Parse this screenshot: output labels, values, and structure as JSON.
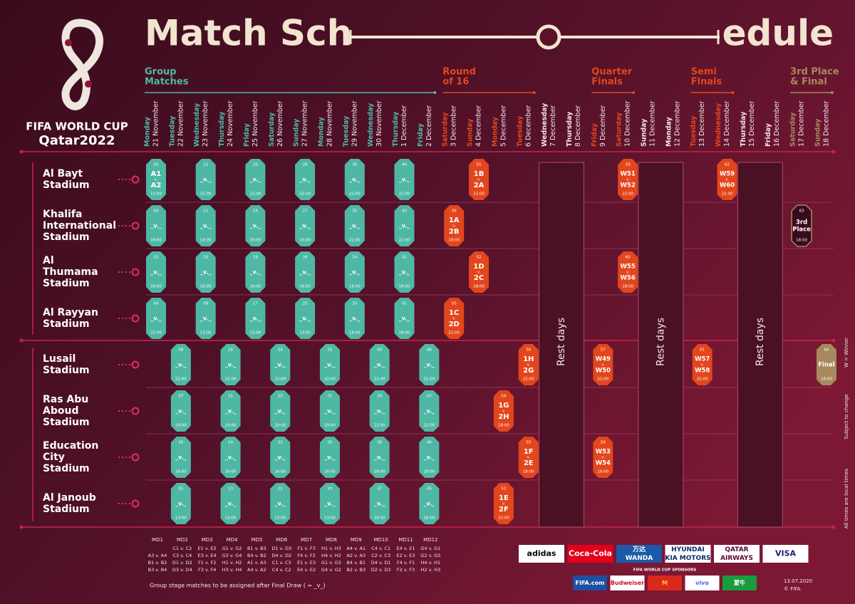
{
  "header": {
    "title_left": "Match Sch",
    "title_right": "edule",
    "logo_line1": "FIFA WORLD CUP",
    "logo_line2": "Qatar2022"
  },
  "stages": [
    {
      "lines": [
        "Group",
        "Matches"
      ],
      "from": "21 November",
      "to": "2 December",
      "color": "#4eb8a5"
    },
    {
      "lines": [
        "Round",
        "of 16"
      ],
      "from": "3 December",
      "to": "6 December",
      "color": "#e3461c"
    },
    {
      "lines": [
        "Quarter",
        "Finals"
      ],
      "from": "9 December",
      "to": "10 December",
      "color": "#e3461c"
    },
    {
      "lines": [
        "Semi",
        "Finals"
      ],
      "from": "13 December",
      "to": "14 December",
      "color": "#e3461c"
    },
    {
      "lines": [
        "3rd Place",
        "& Final"
      ],
      "from": "17 December",
      "to": "18 December",
      "color": "#a8895e"
    }
  ],
  "dates": [
    {
      "weekday": "Monday",
      "date": "21 November"
    },
    {
      "weekday": "Tuesday",
      "date": "22 November"
    },
    {
      "weekday": "Wednesday",
      "date": "23 November"
    },
    {
      "weekday": "Thursday",
      "date": "24 November"
    },
    {
      "weekday": "Friday",
      "date": "25 November"
    },
    {
      "weekday": "Saturday",
      "date": "26 November"
    },
    {
      "weekday": "Sunday",
      "date": "27 November"
    },
    {
      "weekday": "Monday",
      "date": "28 November"
    },
    {
      "weekday": "Tuesday",
      "date": "29 November"
    },
    {
      "weekday": "Wednesday",
      "date": "30 November"
    },
    {
      "weekday": "Thursday",
      "date": "1 December"
    },
    {
      "weekday": "Friday",
      "date": "2 December"
    },
    {
      "weekday": "Saturday",
      "date": "3 December"
    },
    {
      "weekday": "Sunday",
      "date": "4 December"
    },
    {
      "weekday": "Monday",
      "date": "5 December"
    },
    {
      "weekday": "Tuesday",
      "date": "6 December"
    },
    {
      "weekday": "Wednesday",
      "date": "7 December"
    },
    {
      "weekday": "Thursday",
      "date": "8 December"
    },
    {
      "weekday": "Friday",
      "date": "9 December"
    },
    {
      "weekday": "Saturday",
      "date": "10 December"
    },
    {
      "weekday": "Sunday",
      "date": "11 December"
    },
    {
      "weekday": "Monday",
      "date": "12 December"
    },
    {
      "weekday": "Tuesday",
      "date": "13 December"
    },
    {
      "weekday": "Wednesday",
      "date": "14 December"
    },
    {
      "weekday": "Thursday",
      "date": "15 December"
    },
    {
      "weekday": "Friday",
      "date": "16 December"
    },
    {
      "weekday": "Saturday",
      "date": "17 December"
    },
    {
      "weekday": "Sunday",
      "date": "18 December"
    }
  ],
  "rest_days": [
    {
      "label": "Rest days",
      "from": "7 December",
      "to": "8 December"
    },
    {
      "label": "Rest days",
      "from": "11 December",
      "to": "12 December"
    },
    {
      "label": "Rest days",
      "from": "15 December",
      "to": "16 December"
    }
  ],
  "versus": "v.",
  "stadiums": [
    {
      "lines": [
        "Al Bayt",
        "Stadium"
      ],
      "matches": [
        {
          "no": "01",
          "day": "21 November",
          "home": "A1",
          "away": "A2",
          "time": "13:00"
        },
        {
          "no": "12",
          "day": "23 November",
          "teams": "_v._",
          "time": "22:00"
        },
        {
          "no": "20",
          "day": "25 November",
          "teams": "_v._",
          "time": "22:00"
        },
        {
          "no": "28",
          "day": "27 November",
          "teams": "_v._",
          "time": "22:00"
        },
        {
          "no": "36",
          "day": "29 November",
          "teams": "_v._",
          "time": "22:00"
        },
        {
          "no": "44",
          "day": "1 December",
          "teams": "_v._",
          "time": "22:00"
        },
        {
          "no": "51",
          "day": "4 December",
          "home": "1B",
          "away": "2A",
          "time": "22:00"
        },
        {
          "no": "59",
          "day": "10 December",
          "home": "W51",
          "away": "W52",
          "time": "22:00"
        },
        {
          "no": "62",
          "day": "14 December",
          "home": "W59",
          "away": "W60",
          "time": "22:00"
        }
      ]
    },
    {
      "lines": [
        "Khalifa",
        "International",
        "Stadium"
      ],
      "matches": [
        {
          "no": "03",
          "day": "21 November",
          "teams": "_v._",
          "time": "19:00"
        },
        {
          "no": "11",
          "day": "23 November",
          "teams": "_v._",
          "time": "19:00"
        },
        {
          "no": "19",
          "day": "25 November",
          "teams": "_v._",
          "time": "19:00"
        },
        {
          "no": "27",
          "day": "27 November",
          "teams": "_v._",
          "time": "19:00"
        },
        {
          "no": "35",
          "day": "29 November",
          "teams": "_v._",
          "time": "22:00"
        },
        {
          "no": "43",
          "day": "1 December",
          "teams": "_v._",
          "time": "22:00"
        },
        {
          "no": "49",
          "day": "3 December",
          "home": "1A",
          "away": "2B",
          "time": "18:00"
        },
        {
          "no": "63",
          "day": "17 December",
          "name_lines": [
            "3rd",
            "Place"
          ],
          "time": "18:00",
          "outline": true
        }
      ]
    },
    {
      "lines": [
        "Al",
        "Thumama",
        "Stadium"
      ],
      "matches": [
        {
          "no": "02",
          "day": "21 November",
          "teams": "_v._",
          "time": "16:00"
        },
        {
          "no": "10",
          "day": "23 November",
          "teams": "_v._",
          "time": "16:00"
        },
        {
          "no": "18",
          "day": "25 November",
          "teams": "_v._",
          "time": "16:00"
        },
        {
          "no": "26",
          "day": "27 November",
          "teams": "_v._",
          "time": "16:00"
        },
        {
          "no": "34",
          "day": "29 November",
          "teams": "_v._",
          "time": "18:00"
        },
        {
          "no": "42",
          "day": "1 December",
          "teams": "_v._",
          "time": "18:00"
        },
        {
          "no": "52",
          "day": "4 December",
          "home": "1D",
          "away": "2C",
          "time": "18:00"
        },
        {
          "no": "60",
          "day": "10 December",
          "home": "W55",
          "away": "W56",
          "time": "18:00"
        }
      ]
    },
    {
      "lines": [
        "Al Rayyan",
        "Stadium"
      ],
      "matches": [
        {
          "no": "04",
          "day": "21 November",
          "teams": "_v._",
          "time": "22:00"
        },
        {
          "no": "09",
          "day": "23 November",
          "teams": "_v._",
          "time": "13:00"
        },
        {
          "no": "17",
          "day": "25 November",
          "teams": "_v._",
          "time": "13:00"
        },
        {
          "no": "25",
          "day": "27 November",
          "teams": "_v._",
          "time": "13:00"
        },
        {
          "no": "33",
          "day": "29 November",
          "teams": "_v._",
          "time": "18:00"
        },
        {
          "no": "41",
          "day": "1 December",
          "teams": "_v._",
          "time": "18:00"
        },
        {
          "no": "50",
          "day": "3 December",
          "home": "1C",
          "away": "2D",
          "time": "22:00"
        }
      ]
    },
    {
      "lines": [
        "Lusail",
        "Stadium"
      ],
      "matches": [
        {
          "no": "08",
          "day": "22 November",
          "teams": "_v._",
          "time": "22:00"
        },
        {
          "no": "16",
          "day": "24 November",
          "teams": "_v._",
          "time": "22:00"
        },
        {
          "no": "24",
          "day": "26 November",
          "teams": "_v._",
          "time": "22:00"
        },
        {
          "no": "32",
          "day": "28 November",
          "teams": "_v._",
          "time": "22:00"
        },
        {
          "no": "40",
          "day": "30 November",
          "teams": "_v._",
          "time": "22:00"
        },
        {
          "no": "48",
          "day": "2 December",
          "teams": "_v._",
          "time": "22:00"
        },
        {
          "no": "56",
          "day": "6 December",
          "home": "1H",
          "away": "2G",
          "time": "22:00"
        },
        {
          "no": "57",
          "day": "9 December",
          "home": "W49",
          "away": "W50",
          "time": "22:00"
        },
        {
          "no": "61",
          "day": "13 December",
          "home": "W57",
          "away": "W58",
          "time": "22:00"
        },
        {
          "no": "64",
          "day": "18 December",
          "name_lines": [
            "Final"
          ],
          "time": "18:00"
        }
      ]
    },
    {
      "lines": [
        "Ras Abu",
        "Aboud",
        "Stadium"
      ],
      "matches": [
        {
          "no": "07",
          "day": "22 November",
          "teams": "_v._",
          "time": "19:00"
        },
        {
          "no": "15",
          "day": "24 November",
          "teams": "_v._",
          "time": "19:00"
        },
        {
          "no": "23",
          "day": "26 November",
          "teams": "_v._",
          "time": "19:00"
        },
        {
          "no": "31",
          "day": "28 November",
          "teams": "_v._",
          "time": "19:00"
        },
        {
          "no": "39",
          "day": "30 November",
          "teams": "_v._",
          "time": "22:00"
        },
        {
          "no": "47",
          "day": "2 December",
          "teams": "_v._",
          "time": "22:00"
        },
        {
          "no": "54",
          "day": "5 December",
          "home": "1G",
          "away": "2H",
          "time": "18:00"
        }
      ]
    },
    {
      "lines": [
        "Education",
        "City",
        "Stadium"
      ],
      "matches": [
        {
          "no": "06",
          "day": "22 November",
          "teams": "_v._",
          "time": "16:00"
        },
        {
          "no": "14",
          "day": "24 November",
          "teams": "_v._",
          "time": "16:00"
        },
        {
          "no": "22",
          "day": "26 November",
          "teams": "_v._",
          "time": "16:00"
        },
        {
          "no": "30",
          "day": "28 November",
          "teams": "_v._",
          "time": "16:00"
        },
        {
          "no": "38",
          "day": "30 November",
          "teams": "_v._",
          "time": "18:00"
        },
        {
          "no": "46",
          "day": "2 December",
          "teams": "_v._",
          "time": "18:00"
        },
        {
          "no": "55",
          "day": "6 December",
          "home": "1F",
          "away": "2E",
          "time": "18:00"
        },
        {
          "no": "58",
          "day": "9 December",
          "home": "W53",
          "away": "W54",
          "time": "18:00"
        }
      ]
    },
    {
      "lines": [
        "Al Janoub",
        "Stadium"
      ],
      "matches": [
        {
          "no": "05",
          "day": "22 November",
          "teams": "_v._",
          "time": "13:00"
        },
        {
          "no": "13",
          "day": "24 November",
          "teams": "_v._",
          "time": "13:00"
        },
        {
          "no": "21",
          "day": "26 November",
          "teams": "_v._",
          "time": "13:00"
        },
        {
          "no": "29",
          "day": "28 November",
          "teams": "_v._",
          "time": "13:00"
        },
        {
          "no": "37",
          "day": "30 November",
          "teams": "_v._",
          "time": "18:00"
        },
        {
          "no": "45",
          "day": "2 December",
          "teams": "_v._",
          "time": "18:00"
        },
        {
          "no": "53",
          "day": "5 December",
          "home": "1E",
          "away": "2F",
          "time": "22:00"
        }
      ]
    }
  ],
  "matchdays": [
    {
      "label": "MD1",
      "lines": [
        "A3 v. A4",
        "B1 v. B2",
        "B3 v. B4"
      ]
    },
    {
      "label": "MD2",
      "lines": [
        "C1 v. C2",
        "C3 v. C4",
        "D1 v. D2",
        "D3 v. D4"
      ]
    },
    {
      "label": "MD3",
      "lines": [
        "E1 v. E2",
        "E3 v. E4",
        "F1 v. F2",
        "F3 v. F4"
      ]
    },
    {
      "label": "MD4",
      "lines": [
        "G1 v. G2",
        "G3 v. G4",
        "H1 v. H2",
        "H3 v. H4"
      ]
    },
    {
      "label": "MD5",
      "lines": [
        "B1 v. B3",
        "B4 v. B2",
        "A1 v. A3",
        "A4 v. A2"
      ]
    },
    {
      "label": "MD6",
      "lines": [
        "D1 v. D3",
        "D4 v. D2",
        "C1 v. C3",
        "C4 v. C2"
      ]
    },
    {
      "label": "MD7",
      "lines": [
        "F1 v. F3",
        "F4 v. F2",
        "E1 v. E3",
        "E4 v. E2"
      ]
    },
    {
      "label": "MD8",
      "lines": [
        "H1 v. H3",
        "H4 v. H2",
        "G1 v. G3",
        "G4 v. G2"
      ]
    },
    {
      "label": "MD9",
      "lines": [
        "A4 v. A1",
        "A2 v. A3",
        "B4 v. B1",
        "B2 v. B3"
      ]
    },
    {
      "label": "MD10",
      "lines": [
        "C4 v. C1",
        "C2 v. C3",
        "D4 v. D1",
        "D2 v. D3"
      ]
    },
    {
      "label": "MD11",
      "lines": [
        "E4 v. E1",
        "E2 v. E3",
        "F4 v. F1",
        "F2 v. F3"
      ]
    },
    {
      "label": "MD12",
      "lines": [
        "G4 v. G1",
        "G2 v. G3",
        "H4 v. H1",
        "H2 v. H3"
      ]
    }
  ],
  "notes": {
    "draw": "Group stage matches to be assigned after Final Draw ( = _v_)",
    "winner": "W = Winner",
    "subject": "Subject to change",
    "times": "All times are local times",
    "date": "13.07.2020",
    "copyright": "© FIFA"
  },
  "sponsors": {
    "label": "FIFA WORLD CUP SPONSORS",
    "tier1": [
      {
        "texts": [
          "adidas"
        ],
        "color": "#000000",
        "bg": "#ffffff"
      },
      {
        "texts": [
          "Coca-Cola"
        ],
        "color": "#ffffff",
        "bg": "#e4001b"
      },
      {
        "texts": [
          "万达",
          "WANDA"
        ],
        "color": "#ffffff",
        "bg": "#1b5aa8"
      },
      {
        "texts": [
          "HYUNDAI",
          "KIA MOTORS"
        ],
        "color": "#0a2a66",
        "bg": "#ffffff"
      },
      {
        "texts": [
          "QATAR",
          "AIRWAYS"
        ],
        "color": "#5c0632",
        "bg": "#ffffff"
      },
      {
        "texts": [
          "VISA"
        ],
        "color": "#1a1f71",
        "bg": "#ffffff"
      }
    ],
    "tier2": [
      {
        "texts": [
          "FIFA.com"
        ],
        "color": "#ffffff",
        "bg": "#1f4fa0"
      },
      {
        "texts": [
          "Budweiser"
        ],
        "color": "#c8102e",
        "bg": "#ffffff"
      },
      {
        "texts": [
          "M"
        ],
        "color": "#ffc72c",
        "bg": "#da291c"
      },
      {
        "texts": [
          "vivo"
        ],
        "color": "#415fff",
        "bg": "#ffffff"
      },
      {
        "texts": [
          "蒙牛"
        ],
        "color": "#ffffff",
        "bg": "#1a9b3e"
      }
    ]
  }
}
